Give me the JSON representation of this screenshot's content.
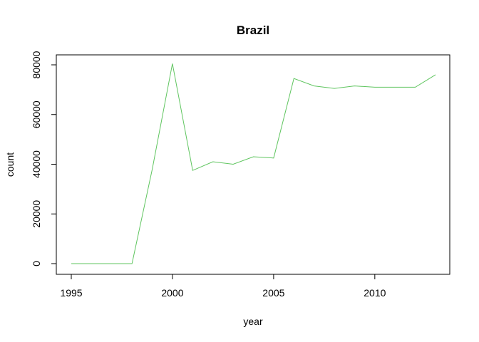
{
  "chart_data": {
    "type": "line",
    "title": "Brazil",
    "xlabel": "year",
    "ylabel": "count",
    "xlim": [
      1995,
      2013
    ],
    "ylim": [
      0,
      80000
    ],
    "x_ticks": [
      1995,
      2000,
      2005,
      2010
    ],
    "y_ticks": [
      0,
      20000,
      40000,
      60000,
      80000
    ],
    "grid": false,
    "legend": "none",
    "line_color": "#5fc55f",
    "series": [
      {
        "x": [
          1995,
          1996,
          1997,
          1998,
          1999,
          2000,
          2001,
          2002,
          2003,
          2004,
          2005,
          2006,
          2007,
          2008,
          2009,
          2010,
          2011,
          2012,
          2013
        ],
        "values": [
          0,
          0,
          0,
          0,
          38000,
          80500,
          37500,
          41000,
          40000,
          43000,
          42500,
          74500,
          71500,
          70500,
          71500,
          71000,
          71000,
          71000,
          76000
        ]
      }
    ]
  }
}
